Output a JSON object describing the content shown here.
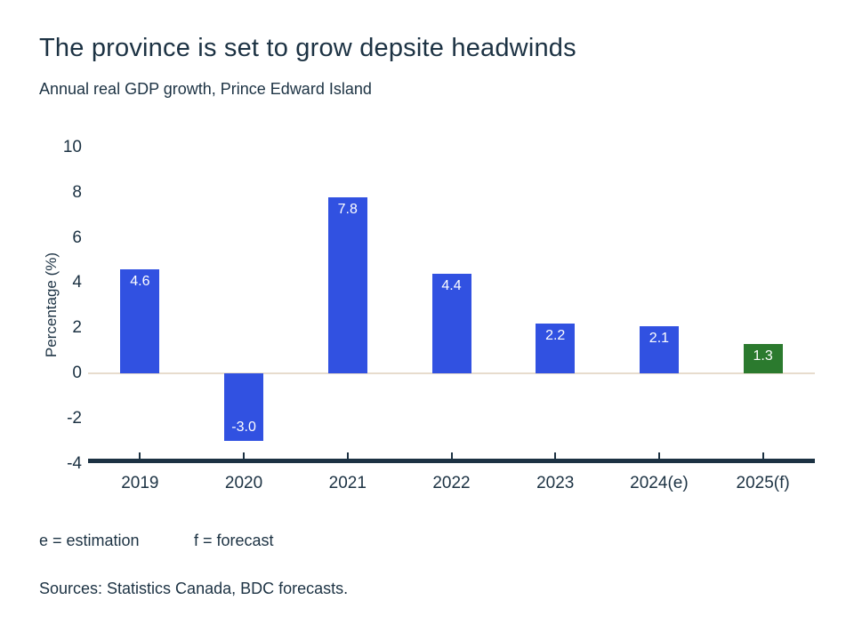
{
  "title": "The province is set to grow depsite headwinds",
  "subtitle": "Annual real GDP growth, Prince Edward Island",
  "footer": {
    "estimation_note": "e = estimation",
    "forecast_note": "f = forecast",
    "sources": "Sources: Statistics Canada, BDC forecasts."
  },
  "colors": {
    "text_navy": "#1c3243",
    "bar_blue": "#3151e1",
    "bar_green": "#2b7a2e",
    "zero_line": "#e7dccd",
    "axis_line": "#1c3243",
    "background": "#ffffff"
  },
  "chart_data": {
    "type": "bar",
    "title": "The province is set to grow depsite headwinds",
    "subtitle": "Annual real GDP growth, Prince Edward Island",
    "categories": [
      "2019",
      "2020",
      "2021",
      "2022",
      "2023",
      "2024(e)",
      "2025(f)"
    ],
    "values": [
      4.6,
      -3.0,
      7.8,
      4.4,
      2.2,
      2.1,
      1.3
    ],
    "value_labels": [
      "4.6",
      "-3.0",
      "7.8",
      "4.4",
      "2.2",
      "2.1",
      "1.3"
    ],
    "bar_color_keys": [
      "bar_blue",
      "bar_blue",
      "bar_blue",
      "bar_blue",
      "bar_blue",
      "bar_blue",
      "bar_green"
    ],
    "xlabel": "",
    "ylabel": "Percentage (%)",
    "ylim": [
      -4,
      10
    ],
    "yticks": [
      "10",
      "8",
      "6",
      "4",
      "2",
      "0",
      "-2",
      "-4"
    ],
    "ytick_values": [
      10,
      8,
      6,
      4,
      2,
      0,
      -2,
      -4
    ],
    "grid": false,
    "legend_position": "none"
  }
}
